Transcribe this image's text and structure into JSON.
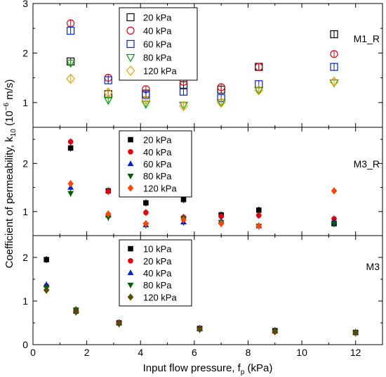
{
  "chart_data": {
    "type": "scatter",
    "xlabel": "Input flow pressure, f",
    "xlabel_sub": "p",
    "xlabel_unit": " (kPa)",
    "ylabel": "Coefficient of permeability, k",
    "ylabel_sub": "10",
    "ylabel_mid": " (10",
    "ylabel_sup": "−6",
    "ylabel_unit": " m/s)",
    "xlim": [
      0,
      13
    ],
    "x_ticks": [
      "0",
      "2",
      "4",
      "6",
      "8",
      "10",
      "12"
    ],
    "panels": [
      {
        "title": "M1_R",
        "ylim": [
          0.5,
          3
        ],
        "y_ticks": [
          "1",
          "2",
          "3"
        ],
        "marker_style": "open",
        "series": [
          {
            "name": "20 kPa",
            "color": "#000000",
            "marker": "square",
            "x": [
              1.4,
              2.8,
              4.2,
              5.6,
              7.0,
              8.4,
              11.2
            ],
            "y": [
              1.83,
              1.17,
              1.18,
              1.35,
              1.26,
              1.72,
              2.38
            ]
          },
          {
            "name": "40 kPa",
            "color": "#e8000b",
            "marker": "circle",
            "x": [
              1.4,
              2.8,
              4.2,
              5.6,
              7.0,
              8.4,
              11.2
            ],
            "y": [
              2.6,
              1.5,
              1.27,
              1.42,
              1.31,
              1.72,
              1.98
            ]
          },
          {
            "name": "60 kPa",
            "color": "#0022cc",
            "marker": "square",
            "x": [
              1.4,
              2.8,
              4.2,
              5.6,
              7.0,
              8.4,
              11.2
            ],
            "y": [
              2.45,
              1.45,
              1.15,
              1.22,
              1.09,
              1.37,
              1.72
            ]
          },
          {
            "name": "80 kPa",
            "color": "#00a000",
            "marker": "triangle-down",
            "x": [
              1.4,
              2.8,
              4.2,
              5.6,
              7.0,
              8.4,
              11.2
            ],
            "y": [
              1.8,
              1.05,
              0.97,
              0.95,
              1.0,
              1.25,
              1.4
            ]
          },
          {
            "name": "120 kPa",
            "color": "#e8a000",
            "marker": "diamond",
            "x": [
              1.4,
              2.8,
              4.2,
              5.6,
              7.0,
              8.4,
              11.2
            ],
            "y": [
              1.48,
              1.2,
              1.05,
              0.93,
              1.0,
              1.25,
              1.42
            ]
          }
        ]
      },
      {
        "title": "M3_R",
        "ylim": [
          0.5,
          2.75
        ],
        "y_ticks": [
          "1",
          "2"
        ],
        "marker_style": "filled",
        "series": [
          {
            "name": "20 kPa",
            "color": "#000000",
            "marker": "square",
            "x": [
              1.4,
              2.8,
              4.2,
              5.6,
              7.0,
              8.4,
              11.2
            ],
            "y": [
              2.32,
              1.43,
              1.18,
              1.25,
              0.93,
              1.03,
              0.75
            ]
          },
          {
            "name": "40 kPa",
            "color": "#e8000b",
            "marker": "circle",
            "x": [
              1.4,
              2.8,
              4.2,
              5.6,
              7.0,
              8.4,
              11.2
            ],
            "y": [
              2.45,
              1.42,
              0.98,
              0.88,
              0.9,
              0.92,
              0.85
            ]
          },
          {
            "name": "60 kPa",
            "color": "#0022cc",
            "marker": "triangle-up",
            "x": [
              1.4,
              2.8,
              4.2,
              5.6,
              7.0,
              8.4,
              11.2
            ],
            "y": [
              1.5,
              0.92,
              0.72,
              0.78,
              0.8,
              0.7,
              0.78
            ]
          },
          {
            "name": "80 kPa",
            "color": "#006000",
            "marker": "triangle-down",
            "x": [
              1.4,
              2.8,
              4.2,
              5.6,
              7.0,
              8.4,
              11.2
            ],
            "y": [
              1.38,
              0.88,
              0.72,
              0.85,
              0.78,
              0.7,
              0.75
            ]
          },
          {
            "name": "120 kPa",
            "color": "#ff4500",
            "marker": "diamond",
            "x": [
              1.4,
              2.8,
              4.2,
              5.6,
              7.0,
              8.4,
              11.2
            ],
            "y": [
              1.58,
              0.95,
              0.75,
              0.83,
              0.75,
              0.7,
              1.43
            ]
          }
        ]
      },
      {
        "title": "M3",
        "ylim": [
          0,
          2.5
        ],
        "y_ticks": [
          "0",
          "1",
          "2"
        ],
        "marker_style": "filled",
        "series": [
          {
            "name": "10 kPa",
            "color": "#000000",
            "marker": "square",
            "x": [
              0.5,
              1.6,
              3.2,
              6.2,
              9.0,
              12.0
            ],
            "y": [
              1.95,
              0.77,
              0.5,
              0.37,
              0.32,
              0.28
            ]
          },
          {
            "name": "20 kPa",
            "color": "#e8000b",
            "marker": "circle",
            "x": [
              0.5,
              1.6,
              3.2,
              6.2,
              9.0,
              12.0
            ],
            "y": [
              1.35,
              0.8,
              0.5,
              0.36,
              0.3,
              0.28
            ]
          },
          {
            "name": "40 kPa",
            "color": "#0022cc",
            "marker": "triangle-up",
            "x": [
              0.5,
              1.6,
              3.2,
              6.2,
              9.0,
              12.0
            ],
            "y": [
              1.37,
              0.79,
              0.5,
              0.36,
              0.31,
              0.28
            ]
          },
          {
            "name": "80 kPa",
            "color": "#006000",
            "marker": "triangle-down",
            "x": [
              0.5,
              1.6,
              3.2,
              6.2,
              9.0,
              12.0
            ],
            "y": [
              1.3,
              0.8,
              0.48,
              0.35,
              0.3,
              0.27
            ]
          },
          {
            "name": "120 kPa",
            "color": "#5a4a00",
            "marker": "diamond",
            "x": [
              0.5,
              1.6,
              3.2,
              6.2,
              9.0,
              12.0
            ],
            "y": [
              1.25,
              0.75,
              0.48,
              0.35,
              0.3,
              0.27
            ]
          }
        ]
      }
    ]
  }
}
